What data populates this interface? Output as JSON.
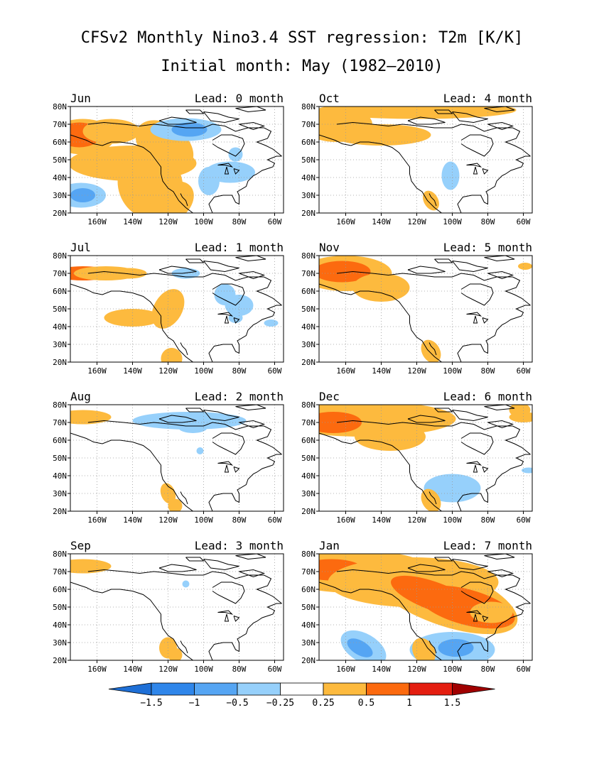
{
  "figure": {
    "title": "CFSv2 Monthly Nino3.4 SST regression: T2m [K/K]",
    "subtitle": "Initial month: May (1982–2010)"
  },
  "axes": {
    "lat_labels": [
      "80N",
      "70N",
      "60N",
      "50N",
      "40N",
      "30N",
      "20N"
    ],
    "lon_labels": [
      "160W",
      "140W",
      "120W",
      "100W",
      "80W",
      "60W"
    ]
  },
  "colorbar": {
    "ticks": [
      "−1.5",
      "−1",
      "−0.5",
      "−0.25",
      "0.25",
      "0.5",
      "1",
      "1.5"
    ],
    "levels": [
      -1.5,
      -1,
      -0.5,
      -0.25,
      0.25,
      0.5,
      1,
      1.5
    ],
    "colors": [
      "#1e6fd6",
      "#2f86ea",
      "#55a5f3",
      "#96d0fb",
      "#ffffff",
      "#fdba3e",
      "#fc6a0f",
      "#e41e10",
      "#a00000"
    ]
  },
  "panels": [
    {
      "id": "jun",
      "month": "Jun",
      "lead": "Lead: 0 month"
    },
    {
      "id": "oct",
      "month": "Oct",
      "lead": "Lead: 4 month"
    },
    {
      "id": "jul",
      "month": "Jul",
      "lead": "Lead: 1 month"
    },
    {
      "id": "nov",
      "month": "Nov",
      "lead": "Lead: 5 month"
    },
    {
      "id": "aug",
      "month": "Aug",
      "lead": "Lead: 2 month"
    },
    {
      "id": "dec",
      "month": "Dec",
      "lead": "Lead: 6 month"
    },
    {
      "id": "sep",
      "month": "Sep",
      "lead": "Lead: 3 month"
    },
    {
      "id": "jan",
      "month": "Jan",
      "lead": "Lead: 7 month"
    }
  ]
}
